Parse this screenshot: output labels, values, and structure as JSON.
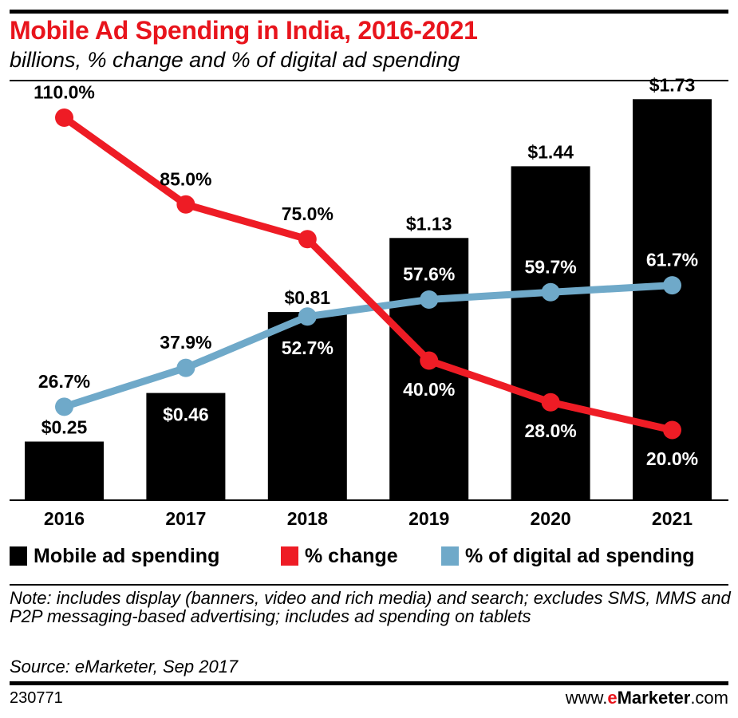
{
  "header": {
    "title": "Mobile Ad Spending in India, 2016-2021",
    "subtitle": "billions, % change and % of digital ad spending"
  },
  "chart_data": {
    "type": "bar",
    "categories": [
      "2016",
      "2017",
      "2018",
      "2019",
      "2020",
      "2021"
    ],
    "series": [
      {
        "name": "Mobile ad spending",
        "type": "bar",
        "values": [
          0.25,
          0.46,
          0.81,
          1.13,
          1.44,
          1.73
        ],
        "labels": [
          "$0.25",
          "$0.46",
          "$0.81",
          "$1.13",
          "$1.44",
          "$1.73"
        ],
        "color": "#000000"
      },
      {
        "name": "% change",
        "type": "line",
        "values": [
          110.0,
          85.0,
          75.0,
          40.0,
          28.0,
          20.0
        ],
        "labels": [
          "110.0%",
          "85.0%",
          "75.0%",
          "40.0%",
          "28.0%",
          "20.0%"
        ],
        "color": "#ee1c25"
      },
      {
        "name": "% of digital ad spending",
        "type": "line",
        "values": [
          26.7,
          37.9,
          52.7,
          57.6,
          59.7,
          61.7
        ],
        "labels": [
          "26.7%",
          "37.9%",
          "52.7%",
          "57.6%",
          "59.7%",
          "61.7%"
        ],
        "color": "#6fa9c9"
      }
    ],
    "ylim": [
      0,
      1.8
    ],
    "percent_ylim": [
      0,
      120
    ],
    "grid": false,
    "legend_position": "bottom"
  },
  "footer": {
    "note": "Note: includes display (banners, video and rich media) and search; excludes SMS, MMS and P2P messaging-based advertising; includes ad spending on tablets",
    "source": "Source: eMarketer, Sep 2017",
    "chart_id": "230771",
    "brand_prefix": "www.",
    "brand_e": "e",
    "brand_main": "Marketer",
    "brand_suffix": ".com"
  }
}
